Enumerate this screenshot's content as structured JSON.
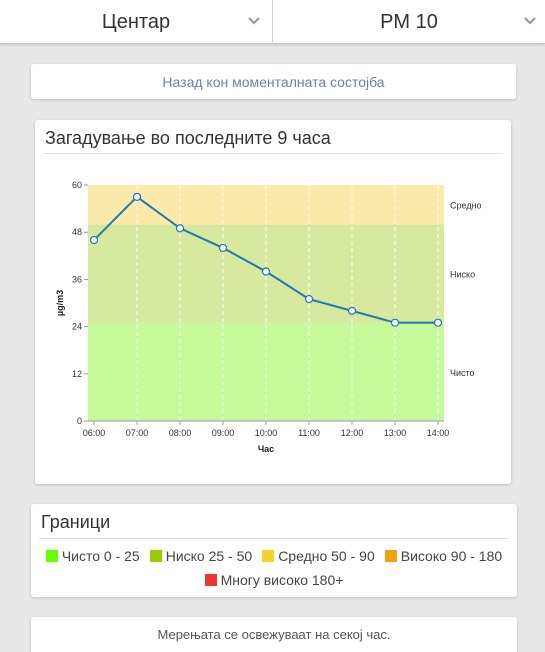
{
  "header": {
    "station": "Центар",
    "pollutant": "PM 10"
  },
  "back_link": "Назад кон моменталната состојба",
  "chart_card": {
    "title": "Загадување во последните 9 часа"
  },
  "chart_data": {
    "type": "line",
    "x": [
      "06:00",
      "07:00",
      "08:00",
      "09:00",
      "10:00",
      "11:00",
      "12:00",
      "13:00",
      "14:00"
    ],
    "series": [
      {
        "values": [
          46,
          57,
          49,
          44,
          38,
          31,
          28,
          25,
          25
        ]
      }
    ],
    "xlabel": "Час",
    "ylabel": "µg/m3",
    "ylim": [
      0,
      60
    ],
    "yticks": [
      0,
      12,
      24,
      36,
      48,
      60
    ],
    "bands": [
      {
        "from": 0,
        "to": 25,
        "label": "Чисто",
        "color": "#c6f99a"
      },
      {
        "from": 25,
        "to": 50,
        "label": "Ниско",
        "color": "#d7e99e"
      },
      {
        "from": 50,
        "to": 60,
        "label": "Средно",
        "color": "#fbeaa9"
      }
    ],
    "line_color": "#1f78b4",
    "vertical_grid": "dashed"
  },
  "legend": {
    "title": "Граници",
    "items": [
      {
        "label": "Чисто 0 - 25",
        "color": "#66ff00"
      },
      {
        "label": "Ниско 25 - 50",
        "color": "#99cc00"
      },
      {
        "label": "Средно 50 - 90",
        "color": "#f5d327"
      },
      {
        "label": "Високо 90 - 180",
        "color": "#f0a30a"
      },
      {
        "label": "Многу високо 180+",
        "color": "#e8382f"
      }
    ]
  },
  "footer_note": "Мерењата се освежуваат на секој час."
}
